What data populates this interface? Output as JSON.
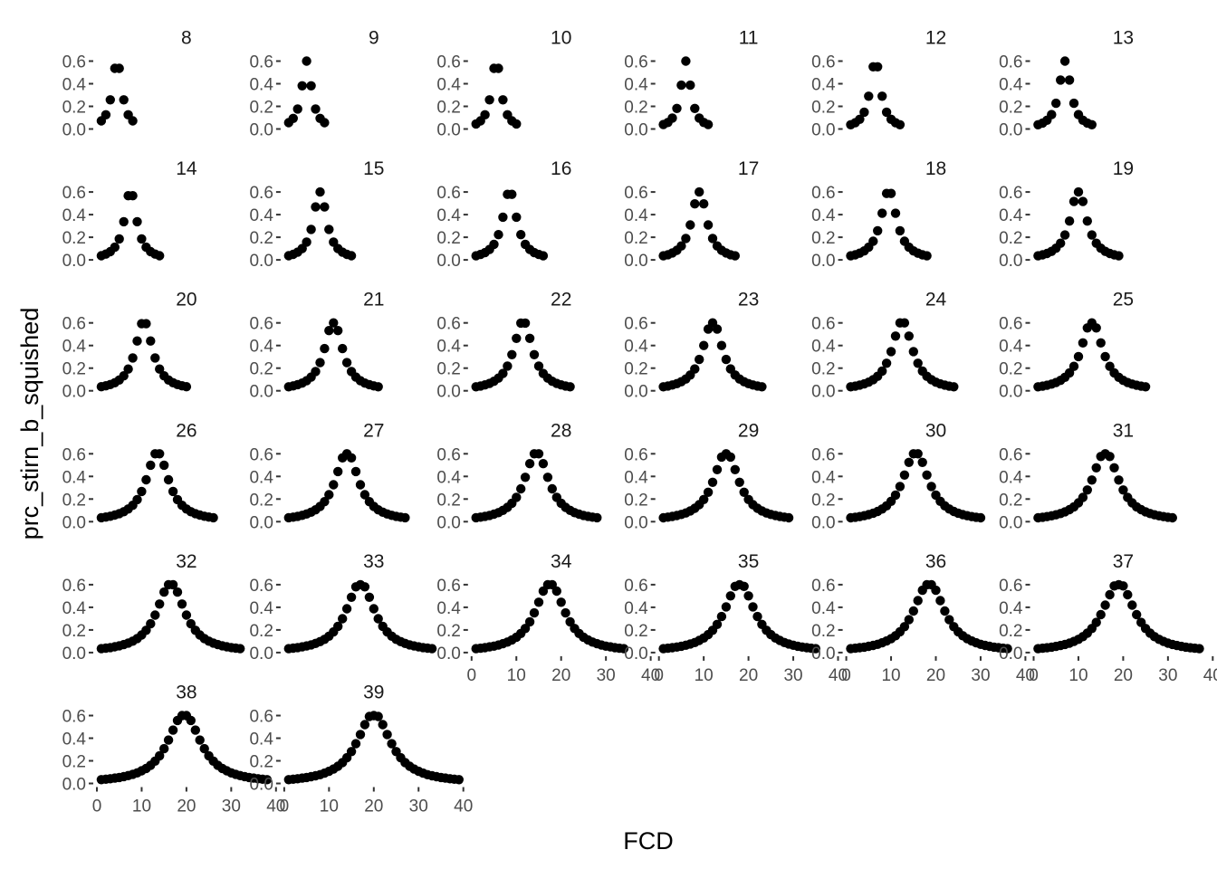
{
  "chart_data": {
    "type": "scatter",
    "layout": "facet-wrap",
    "ncol": 6,
    "xlabel": "FCD",
    "ylabel": "prc_stirn_b_squished",
    "xlim": [
      0,
      40
    ],
    "ylim": [
      0,
      0.6
    ],
    "x_ticks": [
      0,
      10,
      20,
      30,
      40
    ],
    "y_ticks": [
      0.0,
      0.2,
      0.4,
      0.6
    ],
    "x_tick_labels": [
      "0",
      "10",
      "20",
      "30",
      "40"
    ],
    "y_tick_labels": [
      "0.0",
      "0.2",
      "0.4",
      "0.6"
    ],
    "grid": false,
    "point_color": "#000000",
    "facet_note": "each facet n: FCD runs 1..n, symmetric peak near n/2, capped at 0.6",
    "facets": [
      {
        "label": "8",
        "n": 8
      },
      {
        "label": "9",
        "n": 9
      },
      {
        "label": "10",
        "n": 10
      },
      {
        "label": "11",
        "n": 11
      },
      {
        "label": "12",
        "n": 12
      },
      {
        "label": "13",
        "n": 13
      },
      {
        "label": "14",
        "n": 14
      },
      {
        "label": "15",
        "n": 15
      },
      {
        "label": "16",
        "n": 16
      },
      {
        "label": "17",
        "n": 17
      },
      {
        "label": "18",
        "n": 18
      },
      {
        "label": "19",
        "n": 19
      },
      {
        "label": "20",
        "n": 20
      },
      {
        "label": "21",
        "n": 21
      },
      {
        "label": "22",
        "n": 22
      },
      {
        "label": "23",
        "n": 23
      },
      {
        "label": "24",
        "n": 24
      },
      {
        "label": "25",
        "n": 25
      },
      {
        "label": "26",
        "n": 26
      },
      {
        "label": "27",
        "n": 27
      },
      {
        "label": "28",
        "n": 28
      },
      {
        "label": "29",
        "n": 29
      },
      {
        "label": "30",
        "n": 30
      },
      {
        "label": "31",
        "n": 31
      },
      {
        "label": "32",
        "n": 32
      },
      {
        "label": "33",
        "n": 33
      },
      {
        "label": "34",
        "n": 34
      },
      {
        "label": "35",
        "n": 35
      },
      {
        "label": "36",
        "n": 36
      },
      {
        "label": "37",
        "n": 37
      },
      {
        "label": "38",
        "n": 38
      },
      {
        "label": "39",
        "n": 39
      }
    ]
  }
}
